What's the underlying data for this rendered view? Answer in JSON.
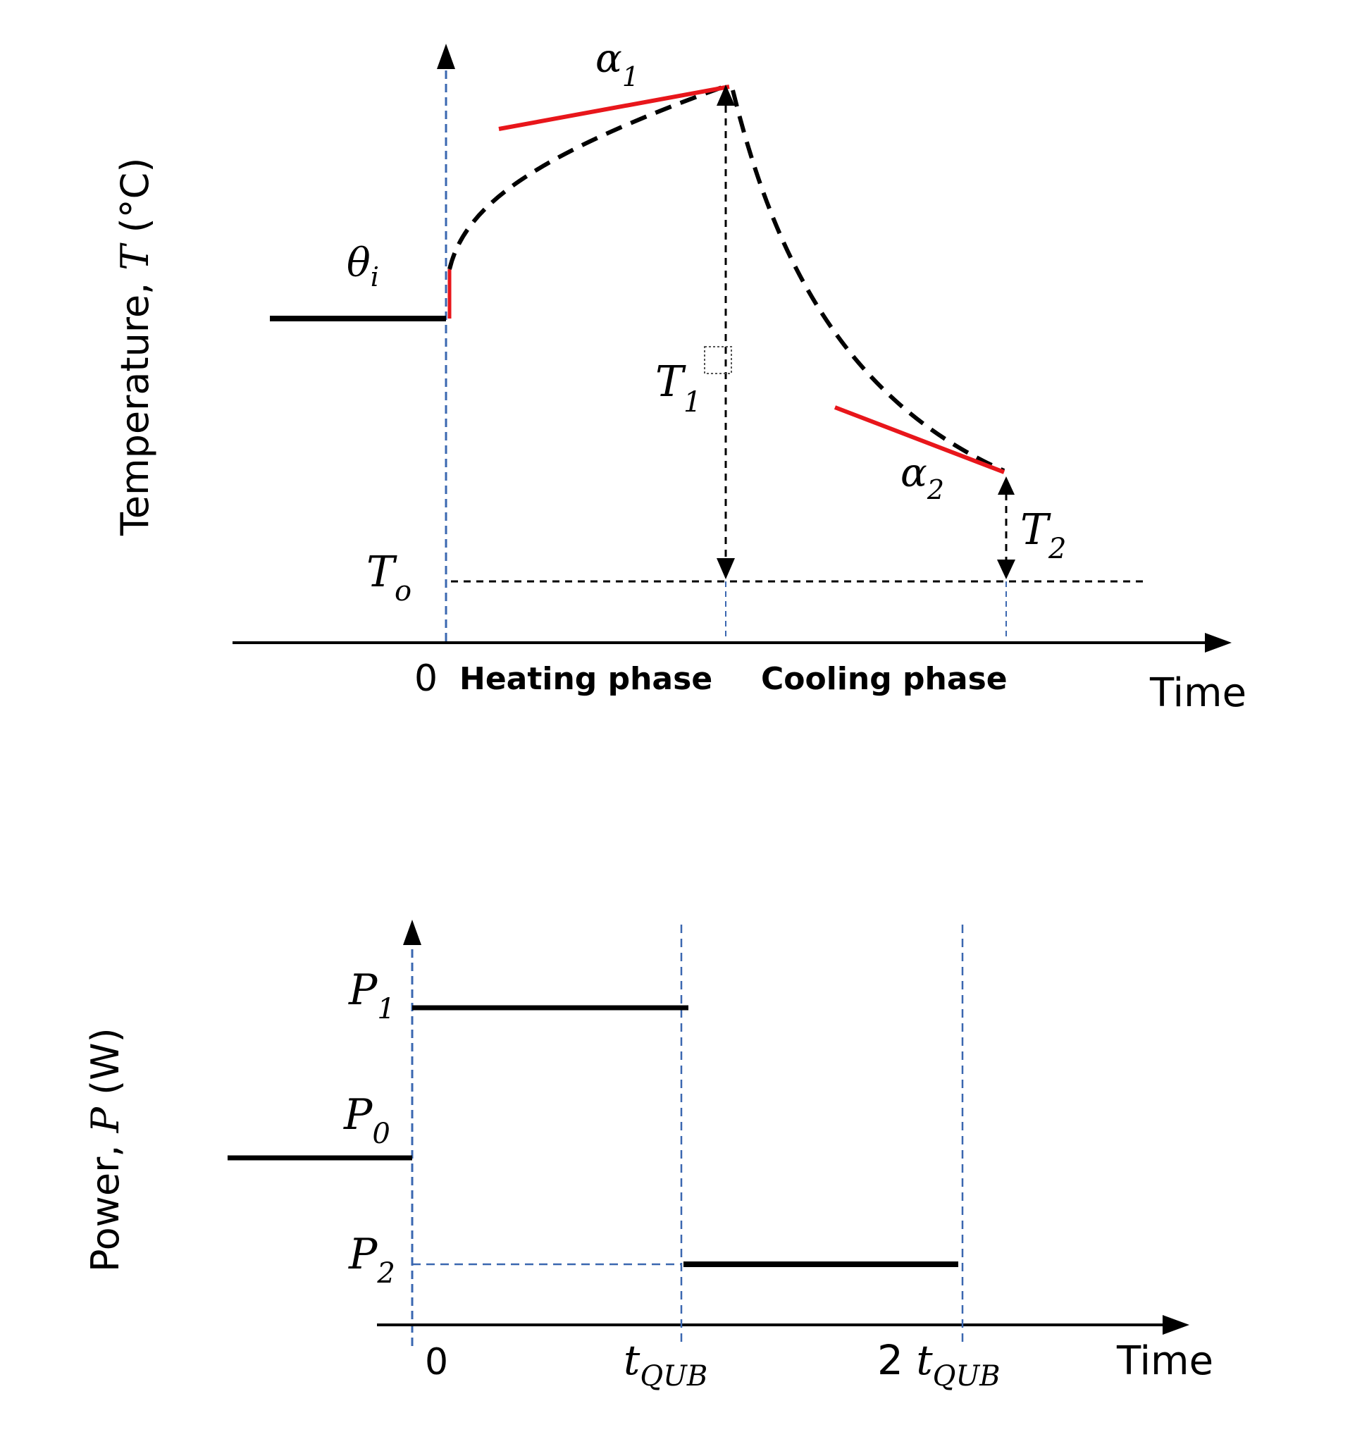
{
  "colors": {
    "axis": "#000000",
    "curve": "#000000",
    "tangent": "#e8161b",
    "guide": "#3a67b0",
    "dotted": "#555555"
  },
  "top_chart": {
    "ylabel_prefix": "Temperature, ",
    "ylabel_var": "T",
    "ylabel_unit": " (°C)",
    "xlabel": "Time",
    "origin": "0",
    "heating_label": "Heating phase",
    "cooling_label": "Cooling phase",
    "theta_symbol": "θ",
    "theta_sub": "i",
    "alpha1_symbol": "α",
    "alpha1_sub": "1",
    "alpha2_symbol": "α",
    "alpha2_sub": "2",
    "t1_symbol": "T",
    "t1_sub": "1",
    "t2_symbol": "T",
    "t2_sub": "2",
    "to_symbol": "T",
    "to_sub": "o"
  },
  "bottom_chart": {
    "ylabel_prefix": "Power, ",
    "ylabel_var": "P",
    "ylabel_unit": " (W)",
    "xlabel": "Time",
    "origin": "0",
    "p1_symbol": "P",
    "p1_sub": "1",
    "p0_symbol": "P",
    "p0_sub": "0",
    "p2_symbol": "P",
    "p2_sub": "2",
    "tqub_symbol": "t",
    "tqub_sub": "QUB",
    "two_tqub_prefix": "2 ",
    "two_tqub_symbol": "t",
    "two_tqub_sub": "QUB"
  }
}
